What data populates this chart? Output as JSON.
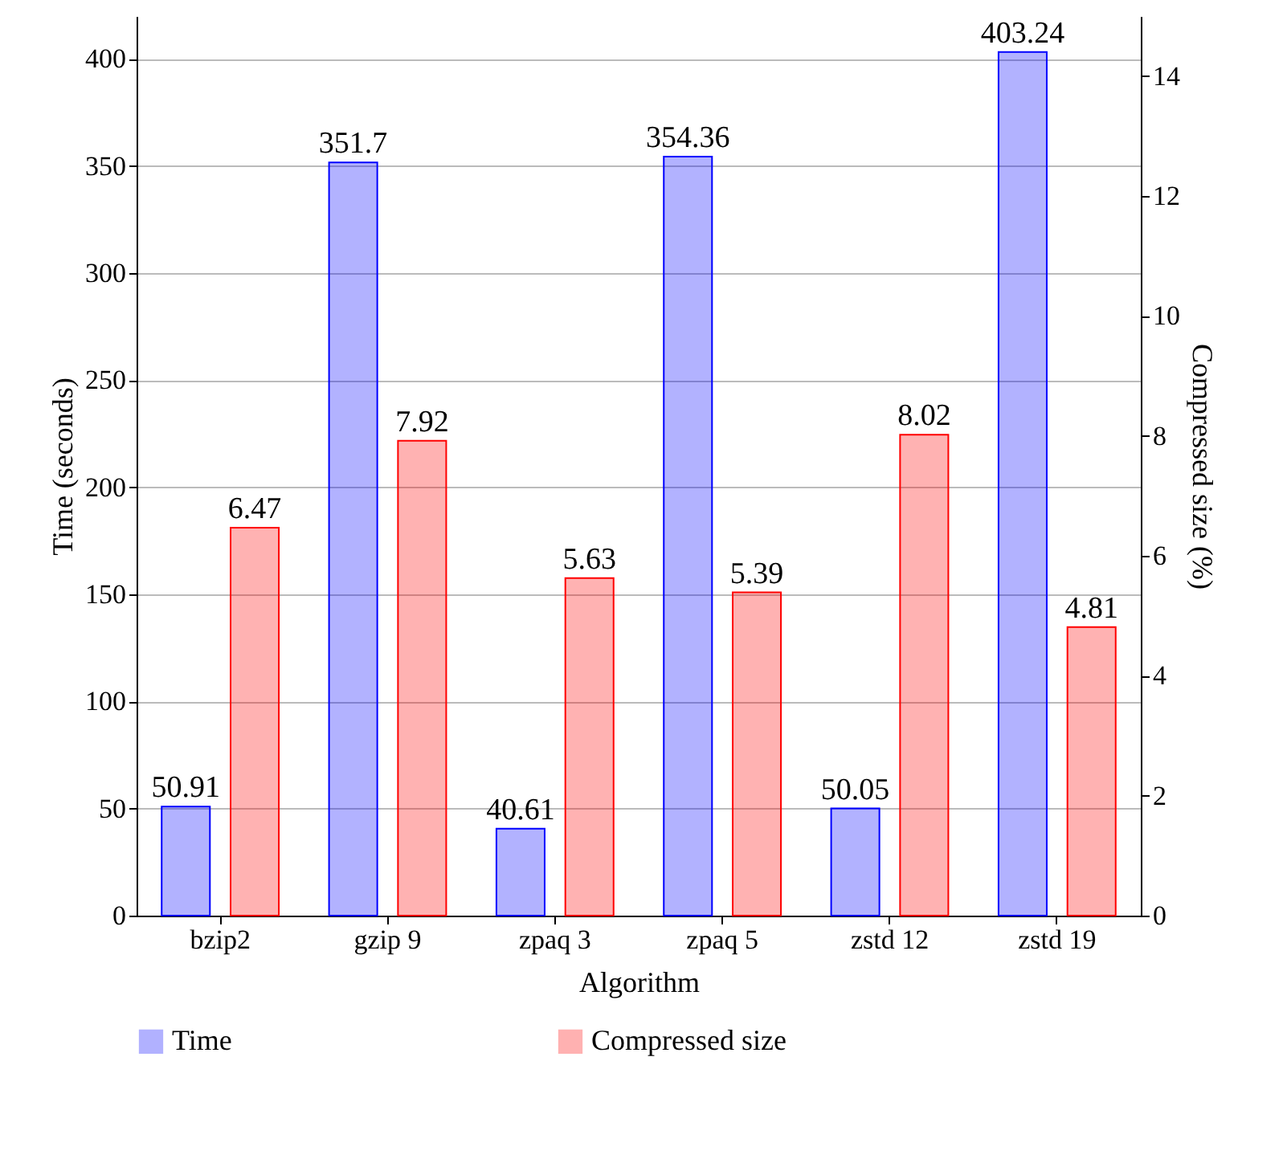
{
  "chart_data": {
    "type": "bar",
    "xlabel": "Algorithm",
    "ylabel": "Time (seconds)",
    "y2label": "Compressed size (%)",
    "categories": [
      "bzip2",
      "gzip 9",
      "zpaq 3",
      "zpaq 5",
      "zstd 12",
      "zstd 19"
    ],
    "series": [
      {
        "name": "Time",
        "color": "#0000ff",
        "values": [
          50.91,
          351.7,
          40.61,
          354.36,
          50.05,
          403.24
        ]
      },
      {
        "name": "Compressed size",
        "color": "#ff0000",
        "axis": "y2",
        "values": [
          6.47,
          7.92,
          5.63,
          5.39,
          8.02,
          4.81
        ]
      }
    ],
    "ylim": [
      0,
      420
    ],
    "yticks": [
      0,
      50,
      100,
      150,
      200,
      250,
      300,
      350,
      400
    ],
    "y2lim": [
      0,
      15
    ],
    "y2ticks": [
      0,
      2,
      4,
      6,
      8,
      10,
      12,
      14
    ],
    "grid": "y",
    "legend": "bottom",
    "data_labels": true
  }
}
